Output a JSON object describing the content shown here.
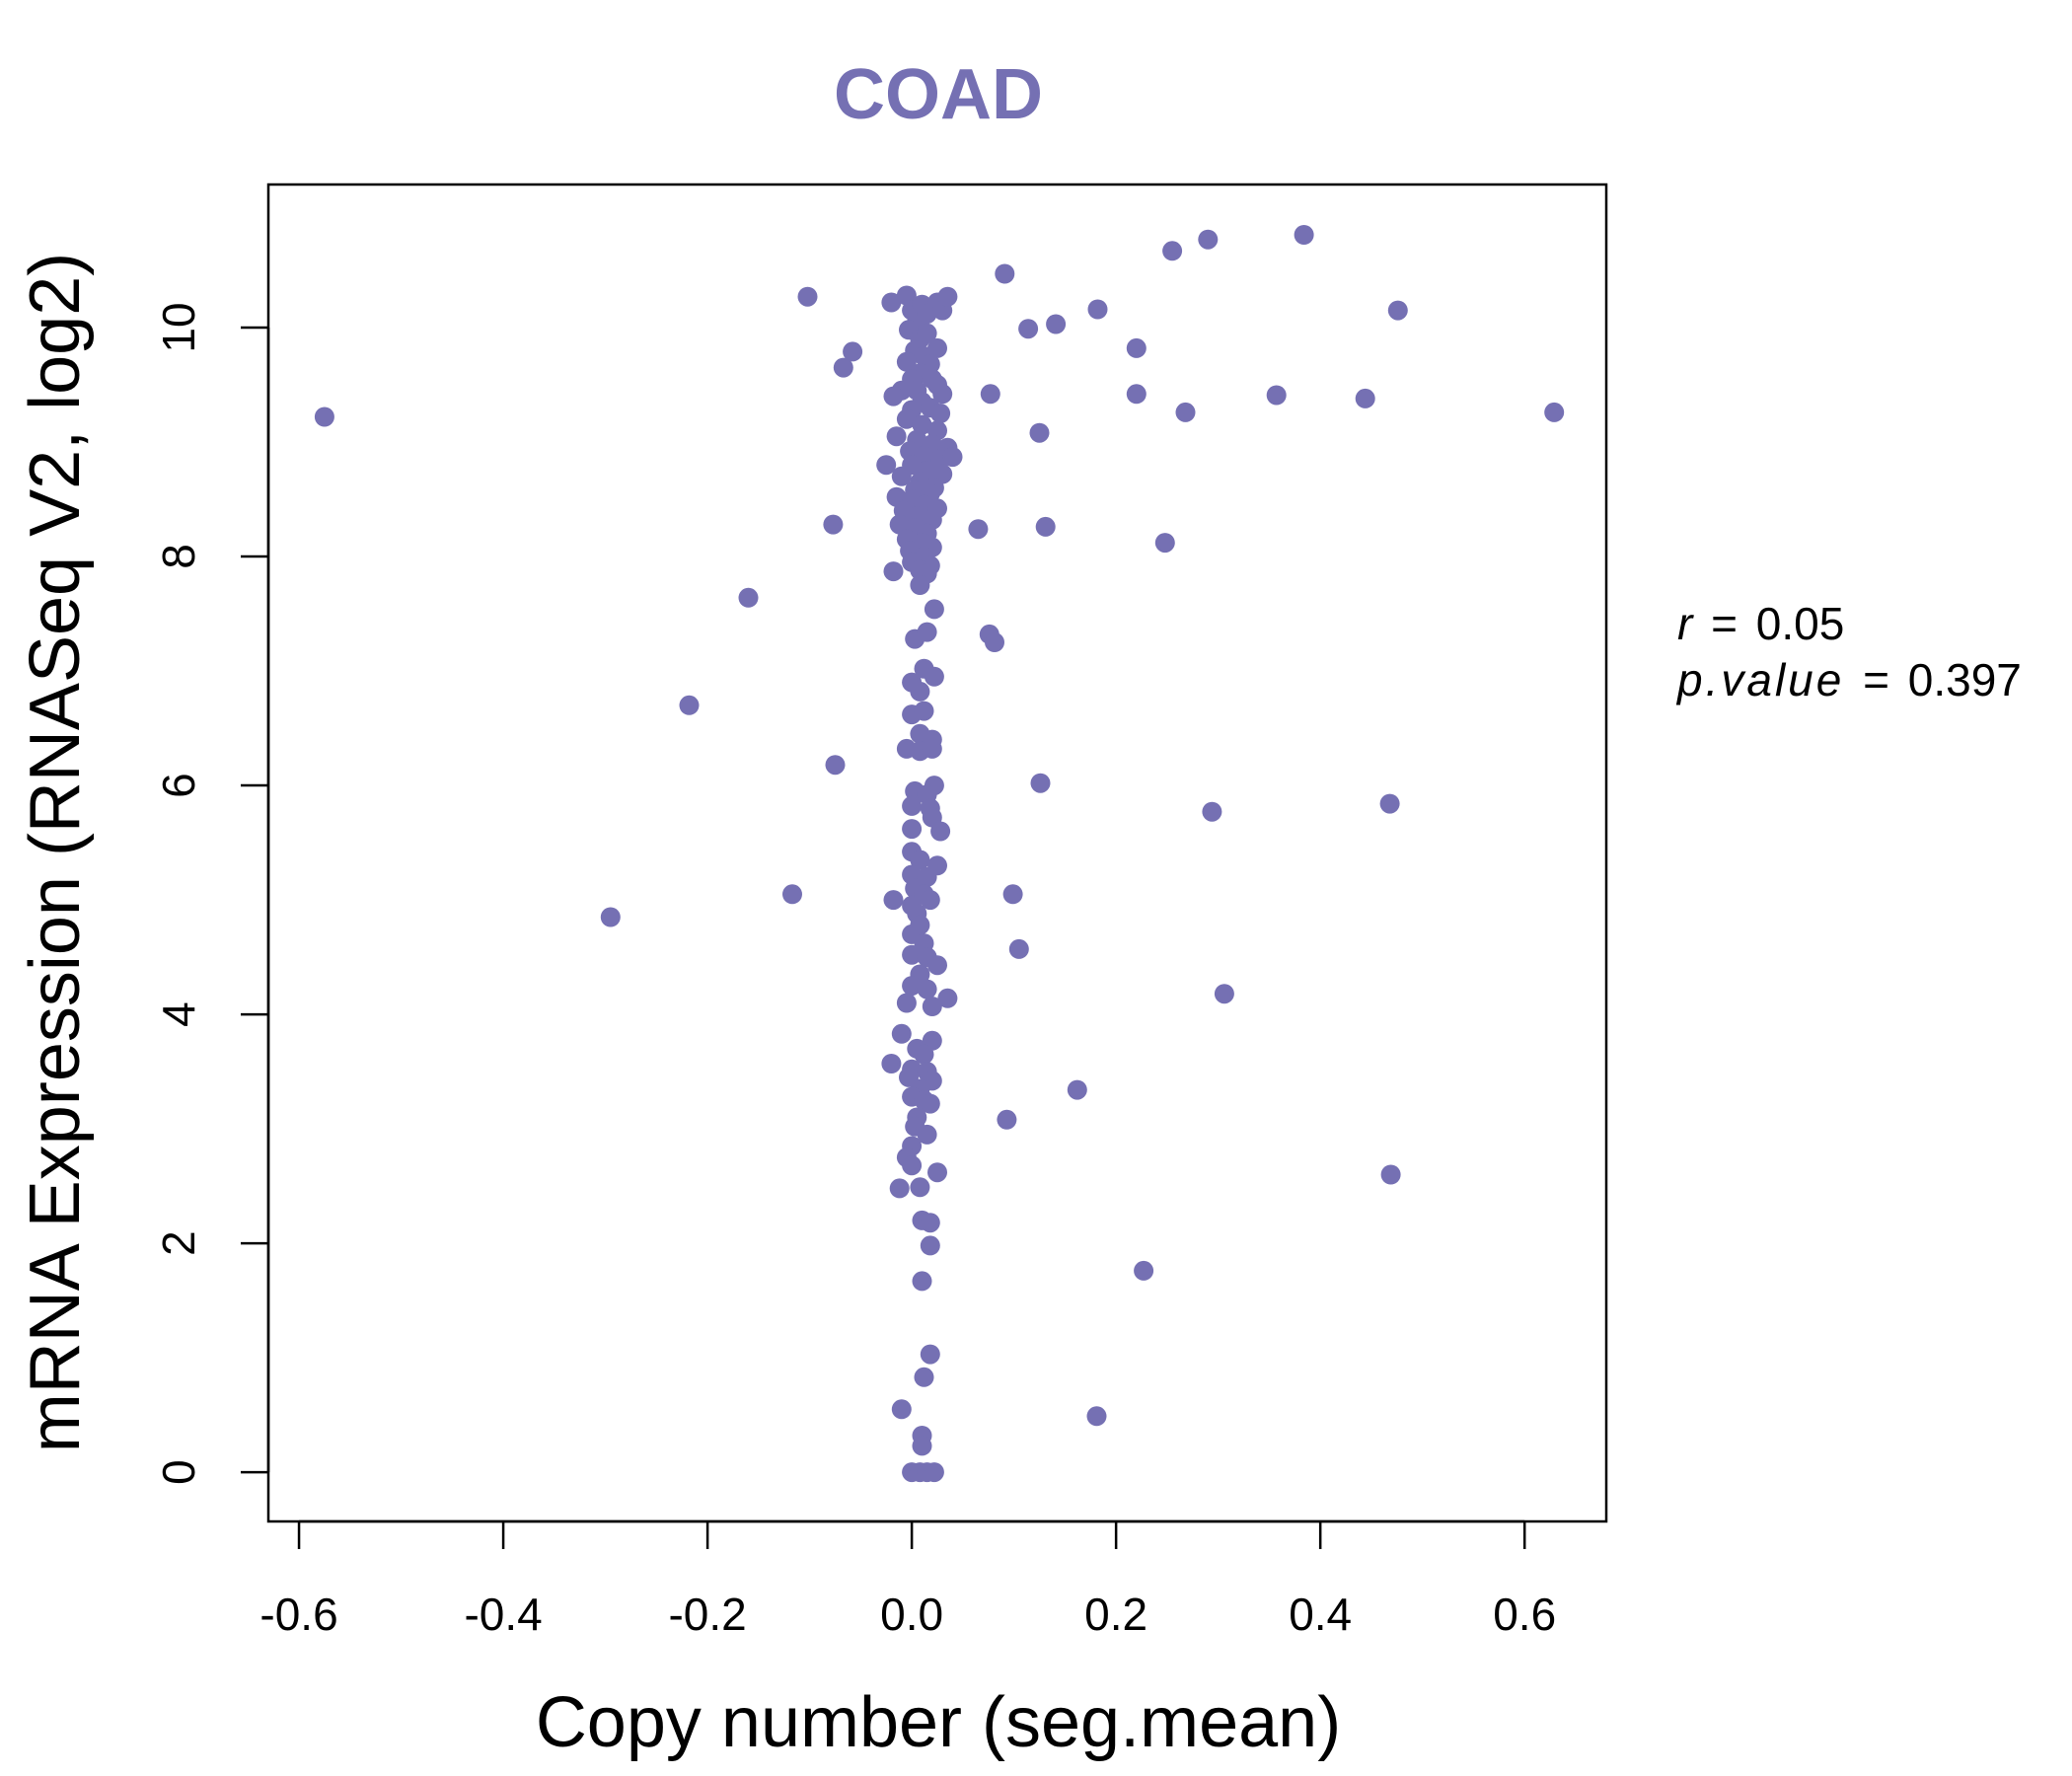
{
  "chart_data": {
    "type": "scatter",
    "title": "COAD",
    "xlabel": "Copy number (seg.mean)",
    "ylabel": "mRNA Expression (RNASeq V2, log2)",
    "xlim": [
      -0.63,
      0.68
    ],
    "ylim": [
      -0.43,
      11.25
    ],
    "x_ticks": [
      -0.6,
      -0.4,
      -0.2,
      0.0,
      0.2,
      0.4,
      0.6
    ],
    "x_tick_labels": [
      "-0.6",
      "-0.4",
      "-0.2",
      "0.0",
      "0.2",
      "0.4",
      "0.6"
    ],
    "y_ticks": [
      0,
      2,
      4,
      6,
      8,
      10
    ],
    "y_tick_labels": [
      "0",
      "2",
      "4",
      "6",
      "8",
      "10"
    ],
    "point_color": "#7570B3",
    "grid": false,
    "legend": "none",
    "annotations": {
      "r_label": "r",
      "r_value": "0.05",
      "p_label": "p.value",
      "p_value": "0.397"
    },
    "points": [
      [
        -0.575,
        9.22
      ],
      [
        -0.295,
        4.85
      ],
      [
        -0.218,
        6.7
      ],
      [
        -0.16,
        7.64
      ],
      [
        -0.117,
        5.05
      ],
      [
        -0.102,
        10.27
      ],
      [
        -0.077,
        8.28
      ],
      [
        -0.075,
        6.18
      ],
      [
        -0.067,
        9.65
      ],
      [
        -0.058,
        9.79
      ],
      [
        0.077,
        9.42
      ],
      [
        0.065,
        8.24
      ],
      [
        0.091,
        10.47
      ],
      [
        0.114,
        9.99
      ],
      [
        0.141,
        10.03
      ],
      [
        0.182,
        10.16
      ],
      [
        0.125,
        9.08
      ],
      [
        0.131,
        8.26
      ],
      [
        0.22,
        9.82
      ],
      [
        0.22,
        9.42
      ],
      [
        0.248,
        8.12
      ],
      [
        0.255,
        10.67
      ],
      [
        0.268,
        9.26
      ],
      [
        0.29,
        10.77
      ],
      [
        0.357,
        9.41
      ],
      [
        0.384,
        10.81
      ],
      [
        0.444,
        9.38
      ],
      [
        0.476,
        10.15
      ],
      [
        0.629,
        9.26
      ],
      [
        0.076,
        7.32
      ],
      [
        0.081,
        7.25
      ],
      [
        0.126,
        6.02
      ],
      [
        0.294,
        5.77
      ],
      [
        0.468,
        5.84
      ],
      [
        0.099,
        5.05
      ],
      [
        0.105,
        4.57
      ],
      [
        0.306,
        4.18
      ],
      [
        0.162,
        3.34
      ],
      [
        0.093,
        3.08
      ],
      [
        0.469,
        2.6
      ],
      [
        0.227,
        1.76
      ],
      [
        0.181,
        0.49
      ],
      [
        -0.02,
        10.22
      ],
      [
        -0.005,
        10.28
      ],
      [
        0.0,
        10.15
      ],
      [
        0.005,
        10.05
      ],
      [
        0.01,
        10.2
      ],
      [
        0.015,
        10.12
      ],
      [
        0.025,
        10.22
      ],
      [
        0.03,
        10.15
      ],
      [
        0.035,
        10.27
      ],
      [
        -0.003,
        9.98
      ],
      [
        0.008,
        9.9
      ],
      [
        0.015,
        9.95
      ],
      [
        0.003,
        9.8
      ],
      [
        0.012,
        9.75
      ],
      [
        0.025,
        9.82
      ],
      [
        -0.005,
        9.7
      ],
      [
        0.018,
        9.68
      ],
      [
        0.008,
        9.6
      ],
      [
        0.0,
        9.55
      ],
      [
        0.02,
        9.55
      ],
      [
        -0.01,
        9.45
      ],
      [
        0.005,
        9.45
      ],
      [
        0.025,
        9.5
      ],
      [
        -0.018,
        9.4
      ],
      [
        0.01,
        9.35
      ],
      [
        0.03,
        9.42
      ],
      [
        0.0,
        9.28
      ],
      [
        0.018,
        9.3
      ],
      [
        0.028,
        9.25
      ],
      [
        -0.005,
        9.2
      ],
      [
        0.01,
        9.15
      ],
      [
        0.025,
        9.1
      ],
      [
        -0.015,
        9.05
      ],
      [
        0.005,
        9.02
      ],
      [
        0.02,
        8.98
      ],
      [
        0.035,
        8.95
      ],
      [
        -0.002,
        8.92
      ],
      [
        0.012,
        8.88
      ],
      [
        0.028,
        8.85
      ],
      [
        0.04,
        8.87
      ],
      [
        -0.025,
        8.8
      ],
      [
        0.0,
        8.8
      ],
      [
        0.015,
        8.75
      ],
      [
        0.03,
        8.72
      ],
      [
        -0.01,
        8.7
      ],
      [
        0.008,
        8.65
      ],
      [
        0.022,
        8.6
      ],
      [
        0.003,
        8.58
      ],
      [
        0.018,
        8.55
      ],
      [
        -0.015,
        8.52
      ],
      [
        0.0,
        8.5
      ],
      [
        0.012,
        8.45
      ],
      [
        0.025,
        8.42
      ],
      [
        -0.008,
        8.4
      ],
      [
        0.005,
        8.35
      ],
      [
        0.02,
        8.32
      ],
      [
        -0.012,
        8.28
      ],
      [
        0.003,
        8.25
      ],
      [
        0.015,
        8.2
      ],
      [
        -0.005,
        8.15
      ],
      [
        0.01,
        8.12
      ],
      [
        0.02,
        8.08
      ],
      [
        -0.002,
        8.05
      ],
      [
        0.012,
        8.0
      ],
      [
        0.0,
        7.95
      ],
      [
        0.018,
        7.92
      ],
      [
        -0.018,
        7.87
      ],
      [
        0.008,
        7.88
      ],
      [
        0.015,
        7.85
      ],
      [
        0.008,
        7.75
      ],
      [
        0.022,
        7.54
      ],
      [
        0.003,
        7.28
      ],
      [
        0.015,
        7.34
      ],
      [
        0.012,
        7.02
      ],
      [
        0.022,
        6.95
      ],
      [
        0.0,
        6.9
      ],
      [
        0.008,
        6.82
      ],
      [
        0.0,
        6.62
      ],
      [
        0.012,
        6.65
      ],
      [
        0.008,
        6.45
      ],
      [
        0.02,
        6.4
      ],
      [
        -0.005,
        6.32
      ],
      [
        0.008,
        6.3
      ],
      [
        0.02,
        6.32
      ],
      [
        0.022,
        6.0
      ],
      [
        0.003,
        5.95
      ],
      [
        0.015,
        5.92
      ],
      [
        0.0,
        5.82
      ],
      [
        0.018,
        5.8
      ],
      [
        0.02,
        5.72
      ],
      [
        0.0,
        5.62
      ],
      [
        0.028,
        5.6
      ],
      [
        0.0,
        5.42
      ],
      [
        0.008,
        5.35
      ],
      [
        0.025,
        5.3
      ],
      [
        0.0,
        5.22
      ],
      [
        0.015,
        5.2
      ],
      [
        0.003,
        5.1
      ],
      [
        0.012,
        5.05
      ],
      [
        -0.018,
        5.0
      ],
      [
        0.0,
        4.95
      ],
      [
        0.018,
        5.0
      ],
      [
        0.005,
        4.88
      ],
      [
        0.008,
        4.78
      ],
      [
        0.0,
        4.7
      ],
      [
        0.012,
        4.62
      ],
      [
        0.0,
        4.52
      ],
      [
        0.015,
        4.5
      ],
      [
        0.025,
        4.43
      ],
      [
        0.008,
        4.35
      ],
      [
        0.0,
        4.25
      ],
      [
        0.015,
        4.22
      ],
      [
        0.035,
        4.14
      ],
      [
        -0.005,
        4.1
      ],
      [
        0.02,
        4.07
      ],
      [
        -0.01,
        3.83
      ],
      [
        0.02,
        3.77
      ],
      [
        0.005,
        3.7
      ],
      [
        0.012,
        3.65
      ],
      [
        -0.02,
        3.57
      ],
      [
        0.0,
        3.52
      ],
      [
        0.015,
        3.5
      ],
      [
        -0.003,
        3.45
      ],
      [
        0.02,
        3.42
      ],
      [
        0.008,
        3.35
      ],
      [
        0.0,
        3.28
      ],
      [
        0.012,
        3.25
      ],
      [
        0.018,
        3.22
      ],
      [
        0.005,
        3.1
      ],
      [
        0.003,
        3.02
      ],
      [
        0.015,
        2.95
      ],
      [
        0.0,
        2.85
      ],
      [
        -0.005,
        2.75
      ],
      [
        0.0,
        2.68
      ],
      [
        0.025,
        2.62
      ],
      [
        -0.012,
        2.48
      ],
      [
        0.008,
        2.49
      ],
      [
        0.01,
        2.2
      ],
      [
        0.018,
        2.18
      ],
      [
        0.018,
        1.98
      ],
      [
        0.01,
        1.67
      ],
      [
        0.018,
        1.03
      ],
      [
        0.012,
        0.83
      ],
      [
        -0.01,
        0.55
      ],
      [
        0.01,
        0.32
      ],
      [
        0.01,
        0.23
      ],
      [
        0.0,
        0.0
      ],
      [
        0.008,
        0.0
      ],
      [
        0.015,
        0.0
      ],
      [
        0.022,
        0.0
      ]
    ]
  }
}
